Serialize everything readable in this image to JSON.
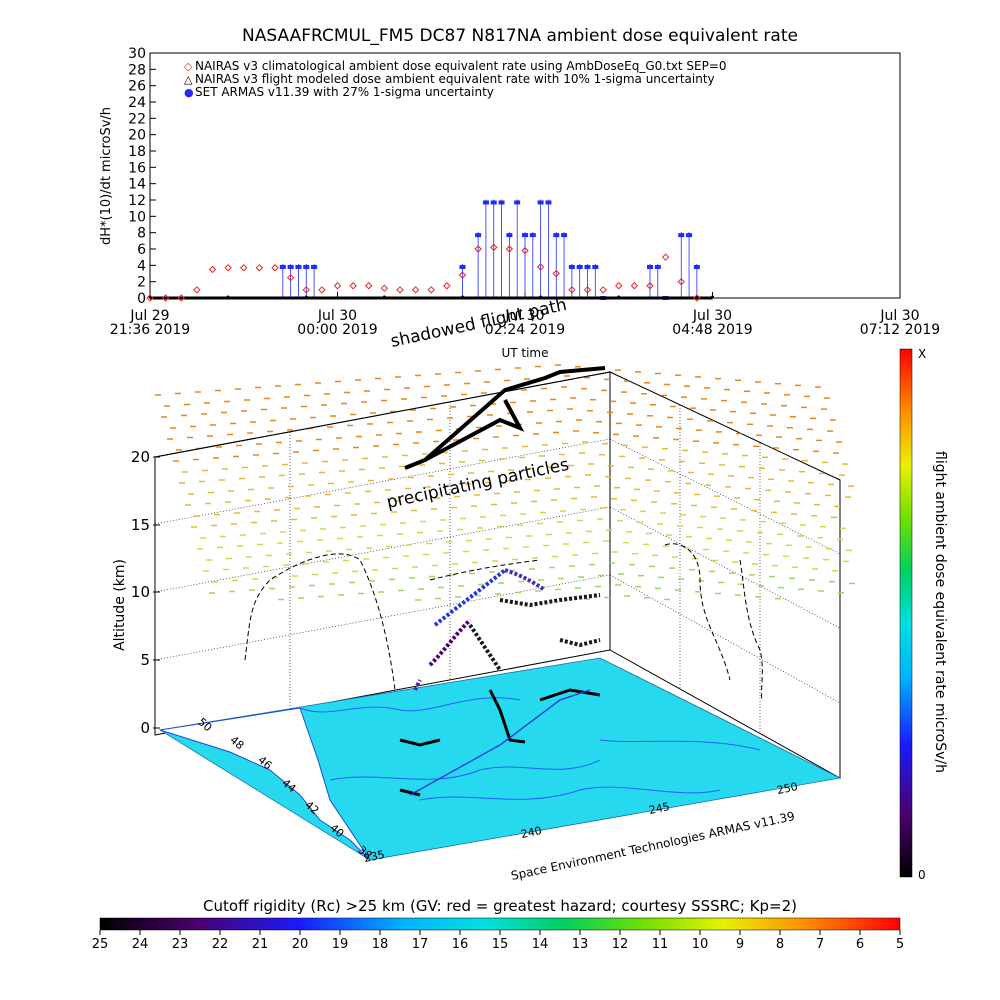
{
  "chart_data": [
    {
      "type": "scatter",
      "title": "NASAAFRCMUL_FM5 DC87 N817NA ambient dose equivalent rate",
      "xlabel": "UT time",
      "ylabel": "dH*(10)/dt microSv/h",
      "ylim": [
        0,
        30
      ],
      "y_ticks": [
        "0",
        "2",
        "4",
        "6",
        "8",
        "10",
        "12",
        "14",
        "16",
        "18",
        "20",
        "22",
        "24",
        "26",
        "28",
        "30"
      ],
      "x_ticks": [
        {
          "line1": "Jul 29",
          "line2": "21:36 2019"
        },
        {
          "line1": "Jul 30",
          "line2": "00:00 2019"
        },
        {
          "line1": "Jul 30",
          "line2": "02:24 2019"
        },
        {
          "line1": "Jul 30",
          "line2": "04:48 2019"
        },
        {
          "line1": "Jul 30",
          "line2": "07:12 2019"
        }
      ],
      "xlim_hours": [
        0,
        9.6
      ],
      "legend": [
        {
          "symbol": "◇",
          "color": "#e8262b",
          "text": "NAIRAS v3 climatological ambient dose equivalent rate using AmbDoseEq_G0.txt SEP=0"
        },
        {
          "symbol": "△",
          "color": "#000000",
          "text": "NAIRAS v3 flight modeled dose ambient equivalent rate with 10% 1-sigma uncertainty"
        },
        {
          "symbol": "●",
          "color": "#1f2bff",
          "text": "SET ARMAS v11.39 with 27% 1-sigma uncertainty"
        }
      ],
      "series": [
        {
          "name": "NAIRAS v3 climatological ambient dose equivalent rate using AmbDoseEq_G0.txt SEP=0",
          "x": [
            0,
            0.2,
            0.4,
            0.6,
            0.8,
            1.0,
            1.2,
            1.4,
            1.6,
            1.8,
            2.0,
            2.2,
            2.4,
            2.6,
            2.8,
            3.0,
            3.2,
            3.4,
            3.6,
            3.8,
            4.0,
            4.2,
            4.4,
            4.6,
            4.8,
            5.0,
            5.2,
            5.4,
            5.6,
            5.8,
            6.0,
            6.2,
            6.4,
            6.6,
            6.8,
            7.0
          ],
          "y": [
            0,
            0,
            0,
            1,
            3.5,
            3.7,
            3.7,
            3.7,
            3.7,
            2.5,
            1.0,
            1.0,
            1.5,
            1.5,
            1.5,
            1.2,
            1.0,
            1.0,
            1.0,
            1.5,
            2.8,
            6.0,
            6.2,
            6.0,
            5.8,
            3.8,
            3.0,
            1.0,
            1.0,
            1.0,
            1.5,
            1.5,
            1.5,
            5.0,
            2.0,
            0
          ]
        },
        {
          "name": "NAIRAS v3 flight modeled dose ambient equivalent rate with 10% 1-sigma uncertainty",
          "x": [
            0,
            1,
            2,
            3,
            4,
            5,
            6,
            7,
            7.2
          ],
          "y": [
            0,
            0,
            0,
            0,
            0,
            0,
            0,
            0,
            0
          ]
        },
        {
          "name": "SET ARMAS v11.39 with 27% 1-sigma uncertainty",
          "x": [
            1.7,
            1.8,
            1.9,
            2.0,
            2.1,
            4.0,
            4.2,
            4.3,
            4.4,
            4.5,
            4.6,
            4.7,
            4.8,
            4.9,
            5.0,
            5.1,
            5.2,
            5.3,
            5.4,
            5.5,
            5.6,
            5.7,
            5.8,
            6.4,
            6.5,
            6.6,
            6.8,
            6.9,
            7.0
          ],
          "y": [
            3.8,
            3.8,
            3.8,
            3.8,
            3.8,
            3.8,
            7.7,
            11.7,
            11.7,
            11.7,
            7.7,
            11.7,
            7.7,
            7.7,
            11.7,
            11.7,
            7.7,
            7.7,
            3.8,
            3.8,
            3.8,
            3.8,
            0,
            3.8,
            3.8,
            0,
            7.7,
            7.7,
            3.8
          ]
        }
      ]
    },
    {
      "type": "scatter",
      "subtype": "3d-flight-track",
      "annotations": [
        "shadowed flight path",
        "precipitating particles",
        "Space Environment Technologies ARMAS v11.39"
      ],
      "zlabel": "Altitude (km)",
      "z_ticks": [
        "0",
        "5",
        "10",
        "15",
        "20"
      ],
      "lat_ticks": [
        "38",
        "40",
        "42",
        "44",
        "46",
        "48",
        "50"
      ],
      "lon_ticks": [
        "235",
        "240",
        "245",
        "250"
      ],
      "colorbar_right": {
        "label": "flight ambient dose equivalent rate microSv/h",
        "top": "X",
        "bottom": "0"
      },
      "colorbar_bottom": {
        "label": "Cutoff rigidity (Rc) >25 km (GV: red = greatest hazard; courtesy SSSRC; Kp=2)",
        "ticks": [
          "25",
          "24",
          "23",
          "22",
          "21",
          "20",
          "19",
          "18",
          "17",
          "16",
          "15",
          "14",
          "13",
          "12",
          "11",
          "10",
          "9",
          "8",
          "7",
          "6",
          "5"
        ]
      }
    }
  ],
  "colors": {
    "nairas_clim": "#e8262b",
    "armas": "#1f2bff",
    "ground": "#27d9ee"
  }
}
